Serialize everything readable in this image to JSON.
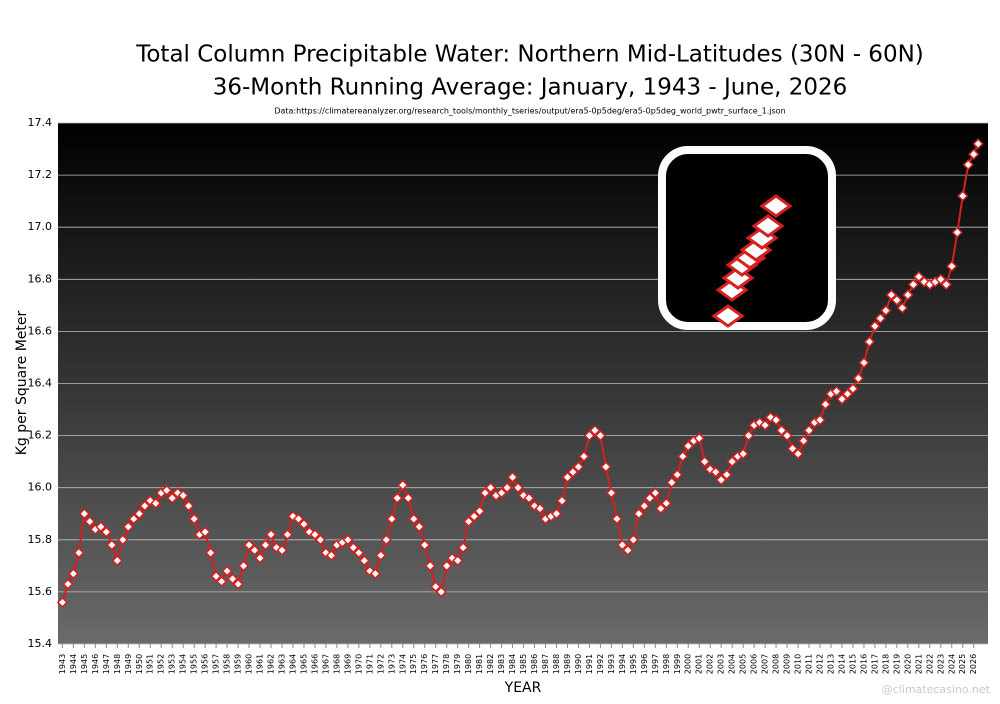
{
  "chart_data": {
    "type": "line",
    "title": "Total Column Precipitable Water: Northern Mid-Latitudes (30N - 60N)",
    "subtitle": "36-Month Running Average: January, 1943 - June, 2026",
    "source": "Data:https://climatereanalyzer.org/research_tools/monthly_tseries/output/era5-0p5deg/era5-0p5deg_world_pwtr_surface_1.json",
    "watermark": "@climatecasino.net",
    "x_label": "YEAR",
    "y_label": "Kg per Square Meter",
    "xlim": [
      1942.6,
      2027.3
    ],
    "ylim": [
      15.4,
      17.4
    ],
    "yticks": [
      {
        "value": 15.4,
        "label": "15.4"
      },
      {
        "value": 15.6,
        "label": "15.6"
      },
      {
        "value": 15.8,
        "label": "15.8"
      },
      {
        "value": 16,
        "label": "16.0"
      },
      {
        "value": 16.2,
        "label": "16.2"
      },
      {
        "value": 16.4,
        "label": "16.4"
      },
      {
        "value": 16.6,
        "label": "16.6"
      },
      {
        "value": 16.8,
        "label": "16.8"
      },
      {
        "value": 17,
        "label": "17.0"
      },
      {
        "value": 17.2,
        "label": "17.2"
      },
      {
        "value": 17.4,
        "label": "17.4"
      }
    ],
    "xticks": [
      1943,
      1944,
      1945,
      1946,
      1947,
      1948,
      1949,
      1950,
      1951,
      1952,
      1953,
      1954,
      1955,
      1956,
      1957,
      1958,
      1959,
      1960,
      1961,
      1962,
      1963,
      1964,
      1965,
      1966,
      1967,
      1968,
      1969,
      1970,
      1971,
      1972,
      1973,
      1974,
      1975,
      1976,
      1977,
      1978,
      1979,
      1980,
      1981,
      1982,
      1983,
      1984,
      1985,
      1986,
      1987,
      1988,
      1989,
      1990,
      1991,
      1992,
      1993,
      1994,
      1995,
      1996,
      1997,
      1998,
      1999,
      2000,
      2001,
      2002,
      2003,
      2004,
      2005,
      2006,
      2007,
      2008,
      2009,
      2010,
      2011,
      2012,
      2013,
      2014,
      2015,
      2016,
      2017,
      2018,
      2019,
      2020,
      2021,
      2022,
      2023,
      2024,
      2025,
      2026
    ],
    "grid": true,
    "color": "#d42020",
    "marker_fill": "#ffffff",
    "x": [
      1943,
      1943.5,
      1944,
      1944.5,
      1945,
      1945.5,
      1946,
      1946.5,
      1947,
      1947.5,
      1948,
      1948.5,
      1949,
      1949.5,
      1950,
      1950.5,
      1951,
      1951.5,
      1952,
      1952.5,
      1953,
      1953.5,
      1954,
      1954.5,
      1955,
      1955.5,
      1956,
      1956.5,
      1957,
      1957.5,
      1958,
      1958.5,
      1959,
      1959.5,
      1960,
      1960.5,
      1961,
      1961.5,
      1962,
      1962.5,
      1963,
      1963.5,
      1964,
      1964.5,
      1965,
      1965.5,
      1966,
      1966.5,
      1967,
      1967.5,
      1968,
      1968.5,
      1969,
      1969.5,
      1970,
      1970.5,
      1971,
      1971.5,
      1972,
      1972.5,
      1973,
      1973.5,
      1974,
      1974.5,
      1975,
      1975.5,
      1976,
      1976.5,
      1977,
      1977.5,
      1978,
      1978.5,
      1979,
      1979.5,
      1980,
      1980.5,
      1981,
      1981.5,
      1982,
      1982.5,
      1983,
      1983.5,
      1984,
      1984.5,
      1985,
      1985.5,
      1986,
      1986.5,
      1987,
      1987.5,
      1988,
      1988.5,
      1989,
      1989.5,
      1990,
      1990.5,
      1991,
      1991.5,
      1992,
      1992.5,
      1993,
      1993.5,
      1994,
      1994.5,
      1995,
      1995.5,
      1996,
      1996.5,
      1997,
      1997.5,
      1998,
      1998.5,
      1999,
      1999.5,
      2000,
      2000.5,
      2001,
      2001.5,
      2002,
      2002.5,
      2003,
      2003.5,
      2004,
      2004.5,
      2005,
      2005.5,
      2006,
      2006.5,
      2007,
      2007.5,
      2008,
      2008.5,
      2009,
      2009.5,
      2010,
      2010.5,
      2011,
      2011.5,
      2012,
      2012.5,
      2013,
      2013.5,
      2014,
      2014.5,
      2015,
      2015.5,
      2016,
      2016.5,
      2017,
      2017.5,
      2018,
      2018.5,
      2019,
      2019.5,
      2020,
      2020.5,
      2021,
      2021.5,
      2022,
      2022.5,
      2023,
      2023.5,
      2024,
      2024.5,
      2025,
      2025.5,
      2026,
      2026.4
    ],
    "values": [
      15.56,
      15.63,
      15.67,
      15.75,
      15.9,
      15.87,
      15.84,
      15.85,
      15.83,
      15.78,
      15.72,
      15.8,
      15.85,
      15.88,
      15.9,
      15.93,
      15.95,
      15.94,
      15.98,
      15.99,
      15.96,
      15.98,
      15.97,
      15.93,
      15.88,
      15.82,
      15.83,
      15.75,
      15.66,
      15.64,
      15.68,
      15.65,
      15.63,
      15.7,
      15.78,
      15.76,
      15.73,
      15.78,
      15.82,
      15.77,
      15.76,
      15.82,
      15.89,
      15.88,
      15.86,
      15.83,
      15.82,
      15.8,
      15.75,
      15.74,
      15.78,
      15.79,
      15.8,
      15.77,
      15.75,
      15.72,
      15.68,
      15.67,
      15.74,
      15.8,
      15.88,
      15.96,
      16.01,
      15.96,
      15.88,
      15.85,
      15.78,
      15.7,
      15.62,
      15.6,
      15.7,
      15.73,
      15.72,
      15.77,
      15.87,
      15.89,
      15.91,
      15.98,
      16.0,
      15.97,
      15.98,
      16.0,
      16.04,
      16.0,
      15.97,
      15.96,
      15.93,
      15.92,
      15.88,
      15.89,
      15.9,
      15.95,
      16.04,
      16.06,
      16.08,
      16.12,
      16.2,
      16.22,
      16.2,
      16.08,
      15.98,
      15.88,
      15.78,
      15.76,
      15.8,
      15.9,
      15.93,
      15.96,
      15.98,
      15.92,
      15.94,
      16.02,
      16.05,
      16.12,
      16.16,
      16.18,
      16.19,
      16.1,
      16.07,
      16.06,
      16.03,
      16.05,
      16.1,
      16.12,
      16.13,
      16.2,
      16.24,
      16.25,
      16.24,
      16.27,
      16.26,
      16.22,
      16.2,
      16.15,
      16.13,
      16.18,
      16.22,
      16.25,
      16.26,
      16.32,
      16.36,
      16.37,
      16.34,
      16.36,
      16.38,
      16.42,
      16.48,
      16.56,
      16.62,
      16.65,
      16.68,
      16.74,
      16.72,
      16.69,
      16.74,
      16.78,
      16.81,
      16.79,
      16.78,
      16.79,
      16.8,
      16.78,
      16.85,
      16.98,
      17.12,
      17.24,
      17.28,
      17.32
    ]
  }
}
